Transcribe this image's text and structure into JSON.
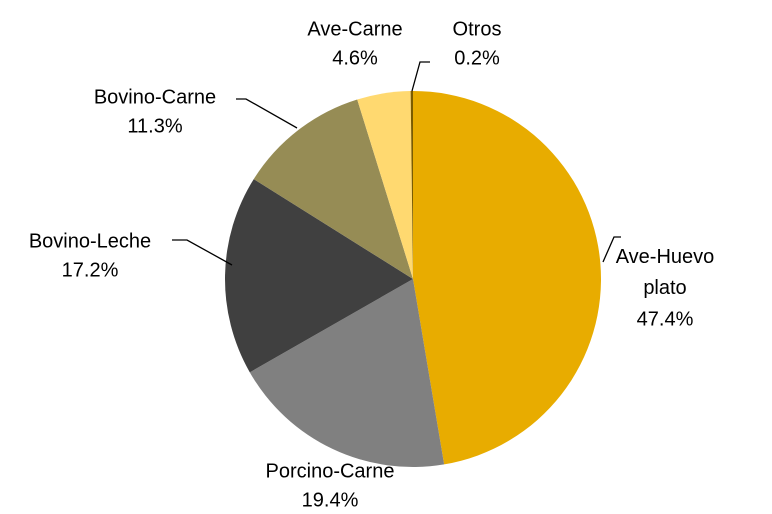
{
  "chart_data": {
    "type": "pie",
    "categories": [
      "Ave-Huevo plato",
      "Porcino-Carne",
      "Bovino-Leche",
      "Bovino-Carne",
      "Ave-Carne",
      "Otros"
    ],
    "values": [
      47.4,
      19.4,
      17.2,
      11.3,
      4.6,
      0.2
    ],
    "value_labels": [
      "47.4%",
      "19.4%",
      "17.2%",
      "11.3%",
      "4.6%",
      "0.2%"
    ],
    "colors": [
      "#e8ac00",
      "#808080",
      "#404040",
      "#968c55",
      "#ffd970",
      "#7a5c00"
    ]
  }
}
